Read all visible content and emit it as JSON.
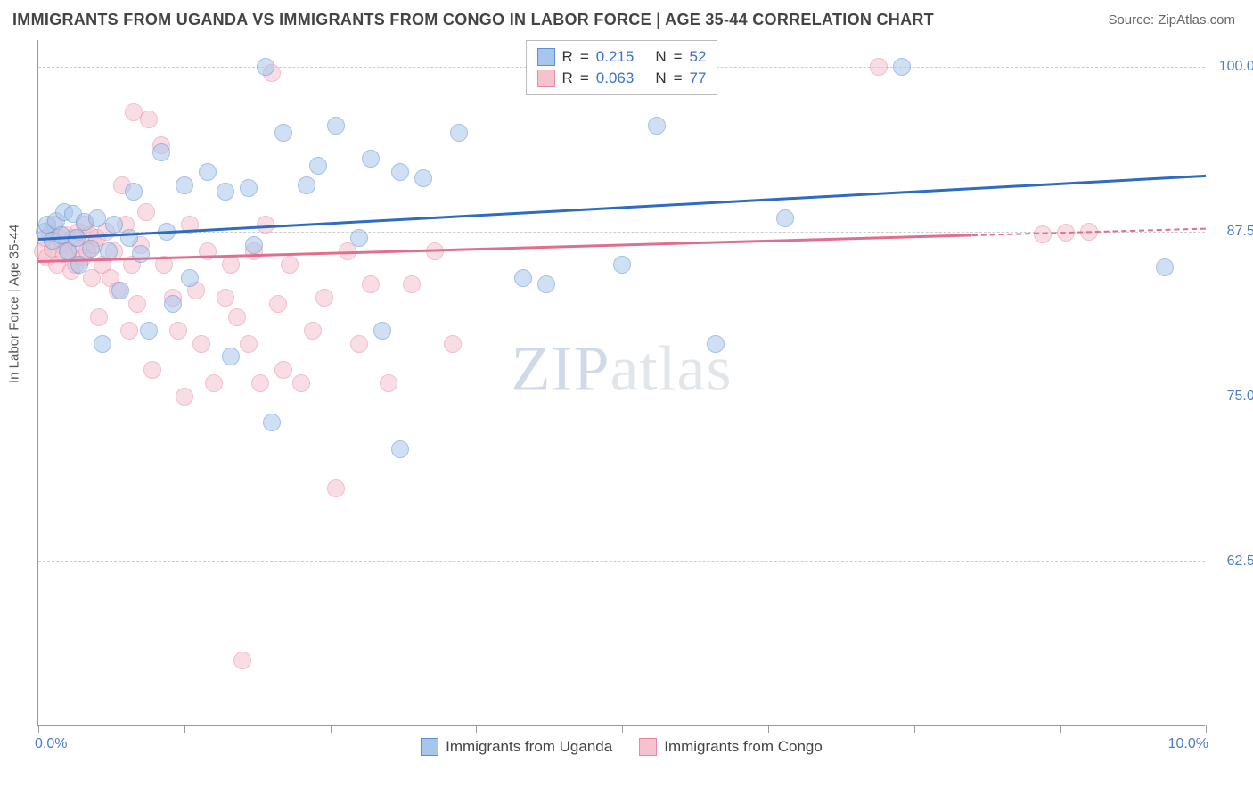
{
  "header": {
    "title": "IMMIGRANTS FROM UGANDA VS IMMIGRANTS FROM CONGO IN LABOR FORCE | AGE 35-44 CORRELATION CHART",
    "source": "Source: ZipAtlas.com"
  },
  "chart": {
    "type": "scatter",
    "y_axis_label": "In Labor Force | Age 35-44",
    "xlim": [
      0.0,
      10.0
    ],
    "ylim": [
      50.0,
      102.0
    ],
    "x_ticks": [
      0.0,
      1.25,
      2.5,
      3.75,
      5.0,
      6.25,
      7.5,
      8.75,
      10.0
    ],
    "x_tick_labels": {
      "start": "0.0%",
      "end": "10.0%"
    },
    "y_gridlines": [
      62.5,
      75.0,
      87.5,
      100.0
    ],
    "y_tick_labels": [
      "62.5%",
      "75.0%",
      "87.5%",
      "100.0%"
    ],
    "grid_color": "#cccccc",
    "axis_color": "#999999",
    "background_color": "#ffffff",
    "tick_label_color": "#4a7ec9",
    "tick_label_fontsize": 16,
    "marker_radius": 10,
    "marker_opacity": 0.55,
    "marker_stroke_width": 1.5,
    "series": [
      {
        "id": "uganda",
        "label": "Immigrants from Uganda",
        "fill_color": "#a8c6ec",
        "stroke_color": "#5b8fd6",
        "line_color": "#2e6cc4",
        "R": "0.215",
        "N": "52",
        "regression": {
          "x1": 0.0,
          "y1": 87.0,
          "x2": 10.0,
          "y2": 91.8,
          "dash_from_x": null
        },
        "points": [
          [
            0.05,
            87.5
          ],
          [
            0.08,
            88.0
          ],
          [
            0.12,
            86.8
          ],
          [
            0.15,
            88.3
          ],
          [
            0.2,
            87.2
          ],
          [
            0.22,
            89.0
          ],
          [
            0.25,
            86.0
          ],
          [
            0.3,
            88.8
          ],
          [
            0.33,
            87.0
          ],
          [
            0.35,
            85.0
          ],
          [
            0.4,
            88.2
          ],
          [
            0.45,
            86.2
          ],
          [
            0.5,
            88.5
          ],
          [
            0.55,
            79.0
          ],
          [
            0.6,
            86.0
          ],
          [
            0.65,
            88.0
          ],
          [
            0.7,
            83.0
          ],
          [
            0.78,
            87.0
          ],
          [
            0.82,
            90.5
          ],
          [
            0.88,
            85.8
          ],
          [
            0.95,
            80.0
          ],
          [
            1.05,
            93.5
          ],
          [
            1.1,
            87.5
          ],
          [
            1.15,
            82.0
          ],
          [
            1.25,
            91.0
          ],
          [
            1.3,
            84.0
          ],
          [
            1.45,
            92.0
          ],
          [
            1.6,
            90.5
          ],
          [
            1.65,
            78.0
          ],
          [
            1.8,
            90.8
          ],
          [
            1.85,
            86.5
          ],
          [
            1.95,
            100.0
          ],
          [
            2.0,
            73.0
          ],
          [
            2.1,
            95.0
          ],
          [
            2.3,
            91.0
          ],
          [
            2.4,
            92.5
          ],
          [
            2.55,
            95.5
          ],
          [
            2.75,
            87.0
          ],
          [
            2.85,
            93.0
          ],
          [
            2.95,
            80.0
          ],
          [
            3.1,
            92.0
          ],
          [
            3.1,
            71.0
          ],
          [
            3.3,
            91.5
          ],
          [
            3.6,
            95.0
          ],
          [
            4.15,
            84.0
          ],
          [
            4.35,
            83.5
          ],
          [
            5.0,
            85.0
          ],
          [
            5.3,
            95.5
          ],
          [
            5.8,
            79.0
          ],
          [
            6.4,
            88.5
          ],
          [
            7.4,
            100.0
          ],
          [
            9.65,
            84.8
          ]
        ]
      },
      {
        "id": "congo",
        "label": "Immigrants from Congo",
        "fill_color": "#f5c2ce",
        "stroke_color": "#e68aa3",
        "line_color": "#e06f8f",
        "R": "0.063",
        "N": "77",
        "regression": {
          "x1": 0.0,
          "y1": 85.3,
          "x2": 10.0,
          "y2": 87.8,
          "dash_from_x": 8.0
        },
        "points": [
          [
            0.04,
            86.0
          ],
          [
            0.06,
            87.0
          ],
          [
            0.08,
            85.5
          ],
          [
            0.1,
            87.3
          ],
          [
            0.12,
            86.2
          ],
          [
            0.14,
            88.0
          ],
          [
            0.16,
            85.0
          ],
          [
            0.18,
            87.0
          ],
          [
            0.2,
            86.5
          ],
          [
            0.22,
            85.8
          ],
          [
            0.24,
            87.2
          ],
          [
            0.26,
            86.0
          ],
          [
            0.28,
            84.5
          ],
          [
            0.3,
            87.0
          ],
          [
            0.32,
            85.0
          ],
          [
            0.34,
            87.5
          ],
          [
            0.36,
            86.2
          ],
          [
            0.38,
            85.5
          ],
          [
            0.4,
            88.0
          ],
          [
            0.42,
            86.0
          ],
          [
            0.44,
            87.2
          ],
          [
            0.46,
            84.0
          ],
          [
            0.48,
            86.5
          ],
          [
            0.5,
            87.0
          ],
          [
            0.52,
            81.0
          ],
          [
            0.55,
            85.0
          ],
          [
            0.58,
            87.5
          ],
          [
            0.62,
            84.0
          ],
          [
            0.65,
            86.0
          ],
          [
            0.68,
            83.0
          ],
          [
            0.72,
            91.0
          ],
          [
            0.75,
            88.0
          ],
          [
            0.78,
            80.0
          ],
          [
            0.8,
            85.0
          ],
          [
            0.82,
            96.5
          ],
          [
            0.85,
            82.0
          ],
          [
            0.88,
            86.5
          ],
          [
            0.92,
            89.0
          ],
          [
            0.95,
            96.0
          ],
          [
            0.98,
            77.0
          ],
          [
            1.05,
            94.0
          ],
          [
            1.08,
            85.0
          ],
          [
            1.15,
            82.5
          ],
          [
            1.2,
            80.0
          ],
          [
            1.25,
            75.0
          ],
          [
            1.3,
            88.0
          ],
          [
            1.35,
            83.0
          ],
          [
            1.4,
            79.0
          ],
          [
            1.45,
            86.0
          ],
          [
            1.5,
            76.0
          ],
          [
            1.6,
            82.5
          ],
          [
            1.65,
            85.0
          ],
          [
            1.7,
            81.0
          ],
          [
            1.75,
            55.0
          ],
          [
            1.8,
            79.0
          ],
          [
            1.85,
            86.0
          ],
          [
            1.9,
            76.0
          ],
          [
            1.95,
            88.0
          ],
          [
            2.0,
            99.5
          ],
          [
            2.05,
            82.0
          ],
          [
            2.1,
            77.0
          ],
          [
            2.15,
            85.0
          ],
          [
            2.25,
            76.0
          ],
          [
            2.35,
            80.0
          ],
          [
            2.45,
            82.5
          ],
          [
            2.55,
            68.0
          ],
          [
            2.65,
            86.0
          ],
          [
            2.75,
            79.0
          ],
          [
            2.85,
            83.5
          ],
          [
            3.0,
            76.0
          ],
          [
            3.2,
            83.5
          ],
          [
            3.4,
            86.0
          ],
          [
            3.55,
            79.0
          ],
          [
            7.2,
            100.0
          ],
          [
            8.6,
            87.3
          ],
          [
            8.8,
            87.4
          ],
          [
            9.0,
            87.5
          ]
        ]
      }
    ],
    "legend_top": {
      "r_label": "R",
      "n_label": "N",
      "eq": "="
    },
    "watermark": {
      "zip": "ZIP",
      "atlas": "atlas"
    }
  }
}
